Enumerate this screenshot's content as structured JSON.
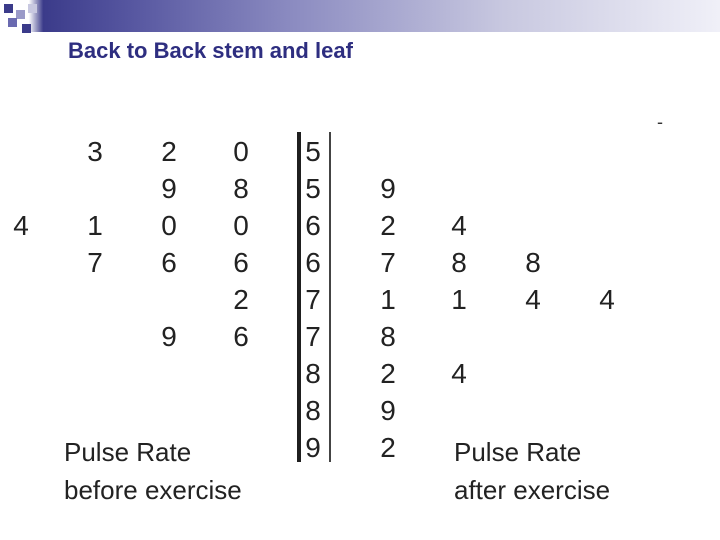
{
  "slide": {
    "title": "Back to Back stem and leaf",
    "dash": "-"
  },
  "stem_leaf": {
    "stems": [
      "5",
      "5",
      "6",
      "6",
      "7",
      "7",
      "8",
      "8",
      "9"
    ],
    "before_leaves": [
      [
        "",
        "3",
        "2",
        "0"
      ],
      [
        "",
        "",
        "9",
        "8"
      ],
      [
        "4",
        "1",
        "0",
        "0"
      ],
      [
        "",
        "7",
        "6",
        "6"
      ],
      [
        "",
        "",
        "",
        "2"
      ],
      [
        "",
        "",
        "9",
        "6"
      ],
      [
        "",
        "",
        "",
        ""
      ],
      [
        "",
        "",
        "",
        ""
      ],
      [
        "",
        "",
        "",
        ""
      ]
    ],
    "after_leaves": [
      [
        "",
        "",
        "",
        ""
      ],
      [
        "9",
        "",
        "",
        ""
      ],
      [
        "2",
        "4",
        "",
        ""
      ],
      [
        "7",
        "8",
        "8",
        ""
      ],
      [
        "1",
        "1",
        "4",
        "4"
      ],
      [
        "8",
        "",
        "",
        ""
      ],
      [
        "2",
        "4",
        "",
        ""
      ],
      [
        "9",
        "",
        "",
        ""
      ],
      [
        "2",
        "",
        "",
        ""
      ]
    ],
    "before_caption": [
      "Pulse Rate",
      "before exercise"
    ],
    "after_caption": [
      "Pulse Rate",
      "after exercise"
    ]
  },
  "colors": {
    "title": "#2e2e80",
    "text": "#222222",
    "divider": "#1f1f1f"
  }
}
